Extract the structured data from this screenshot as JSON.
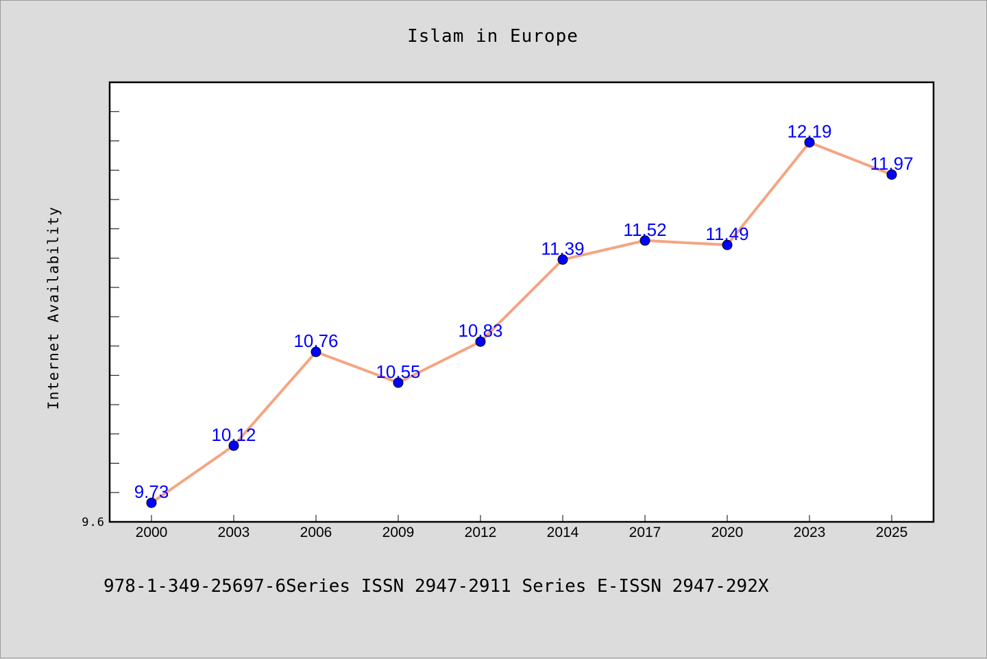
{
  "colors": {
    "background": "#dcdcdc",
    "plot_background": "#ffffff",
    "line": "#f4a582",
    "marker": "#0000ff",
    "data_label": "#0000ff"
  },
  "footer_text": "978-1-349-25697-6Series ISSN 2947-2911 Series E-ISSN 2947-292X",
  "chart_data": {
    "type": "line",
    "title": "Islam in Europe",
    "xlabel": "",
    "ylabel": "Internet Availability",
    "categories": [
      "2000",
      "2003",
      "2006",
      "2009",
      "2012",
      "2014",
      "2017",
      "2020",
      "2023",
      "2025"
    ],
    "series": [
      {
        "values": [
          9.73,
          10.12,
          10.76,
          10.55,
          10.83,
          11.39,
          11.52,
          11.49,
          12.19,
          11.97
        ],
        "labels": [
          "9.73",
          "10.12",
          "10.76",
          "10.55",
          "10.83",
          "11.39",
          "11.52",
          "11.49",
          "12.19",
          "11.97"
        ]
      }
    ],
    "yaxis_labeled_tick": "9.6",
    "ylim": [
      9.6,
      12.6
    ],
    "minor_tick_step": 0.2,
    "grid": false,
    "legend": "none",
    "show_data_labels": true
  }
}
